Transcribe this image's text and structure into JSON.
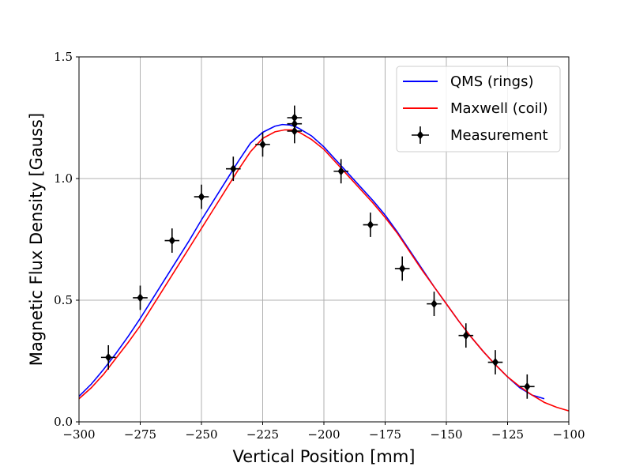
{
  "chart_data": {
    "type": "line",
    "xlabel": "Vertical Position [mm]",
    "ylabel": "Magnetic Flux Density [Gauss]",
    "xlim": [
      -300,
      -100
    ],
    "ylim": [
      0.0,
      1.5
    ],
    "x_ticks": [
      -300,
      -275,
      -250,
      -225,
      -200,
      -175,
      -150,
      -125,
      -100
    ],
    "x_tick_labels": [
      "−300",
      "−275",
      "−250",
      "−225",
      "−200",
      "−175",
      "−150",
      "−125",
      "−100"
    ],
    "y_ticks": [
      0.0,
      0.5,
      1.0,
      1.5
    ],
    "y_tick_labels": [
      "0.0",
      "0.5",
      "1.0",
      "1.5"
    ],
    "grid": true,
    "legend_position": "top-right",
    "series": [
      {
        "name": "QMS (rings)",
        "kind": "line",
        "color": "#0000ff",
        "x": [
          -300,
          -295,
          -290,
          -285,
          -280,
          -275,
          -270,
          -265,
          -260,
          -255,
          -250,
          -245,
          -240,
          -235,
          -230,
          -225,
          -220,
          -217,
          -214,
          -212,
          -210,
          -205,
          -200,
          -195,
          -190,
          -185,
          -180,
          -175,
          -170,
          -165,
          -160,
          -155,
          -150,
          -145,
          -140,
          -135,
          -130,
          -125,
          -120,
          -115,
          -110
        ],
        "y": [
          0.105,
          0.155,
          0.215,
          0.28,
          0.35,
          0.425,
          0.505,
          0.585,
          0.665,
          0.745,
          0.83,
          0.91,
          0.99,
          1.07,
          1.145,
          1.19,
          1.215,
          1.222,
          1.22,
          1.215,
          1.205,
          1.175,
          1.13,
          1.075,
          1.02,
          0.965,
          0.91,
          0.85,
          0.78,
          0.705,
          0.63,
          0.555,
          0.485,
          0.415,
          0.35,
          0.29,
          0.235,
          0.185,
          0.14,
          0.11,
          0.095
        ]
      },
      {
        "name": "Maxwell (coil)",
        "kind": "line",
        "color": "#ff0000",
        "x": [
          -300,
          -295,
          -290,
          -285,
          -280,
          -275,
          -270,
          -265,
          -260,
          -255,
          -250,
          -245,
          -240,
          -235,
          -230,
          -225,
          -220,
          -216,
          -213,
          -210,
          -205,
          -200,
          -195,
          -190,
          -185,
          -180,
          -175,
          -170,
          -165,
          -160,
          -155,
          -150,
          -145,
          -140,
          -135,
          -130,
          -125,
          -120,
          -115,
          -110,
          -105,
          -100
        ],
        "y": [
          0.095,
          0.14,
          0.195,
          0.26,
          0.325,
          0.395,
          0.475,
          0.555,
          0.635,
          0.715,
          0.795,
          0.875,
          0.955,
          1.035,
          1.11,
          1.165,
          1.192,
          1.2,
          1.2,
          1.19,
          1.16,
          1.12,
          1.065,
          1.01,
          0.955,
          0.9,
          0.84,
          0.775,
          0.7,
          0.625,
          0.555,
          0.485,
          0.415,
          0.35,
          0.29,
          0.235,
          0.185,
          0.145,
          0.11,
          0.08,
          0.06,
          0.045
        ]
      },
      {
        "name": "Measurement",
        "kind": "errorbar",
        "color": "#000000",
        "x": [
          -288,
          -275,
          -262,
          -250,
          -237,
          -225,
          -212,
          -212,
          -212,
          -193,
          -181,
          -168,
          -155,
          -142,
          -130,
          -117
        ],
        "y": [
          0.265,
          0.51,
          0.745,
          0.925,
          1.04,
          1.14,
          1.25,
          1.225,
          1.195,
          1.03,
          0.81,
          0.63,
          0.485,
          0.355,
          0.245,
          0.145
        ],
        "xerr": 3,
        "yerr": 0.05
      }
    ]
  }
}
